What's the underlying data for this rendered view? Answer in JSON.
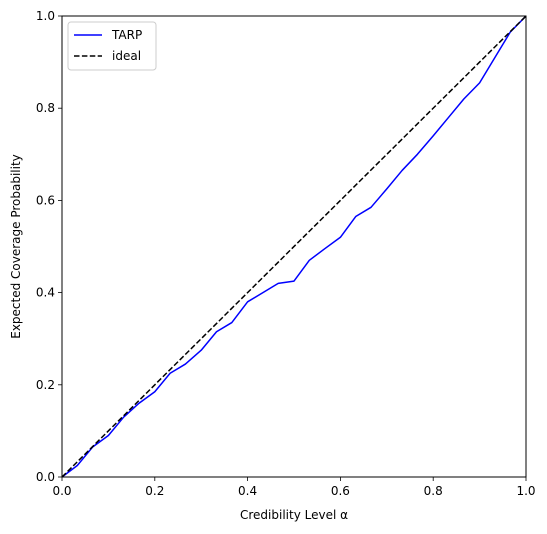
{
  "chart_data": {
    "type": "line",
    "xlabel": "Credibility Level α",
    "ylabel": "Expected Coverage Probability",
    "xlim": [
      0,
      1
    ],
    "ylim": [
      0,
      1
    ],
    "xticks": [
      0.0,
      0.2,
      0.4,
      0.6,
      0.8,
      1.0
    ],
    "yticks": [
      0.0,
      0.2,
      0.4,
      0.6,
      0.8,
      1.0
    ],
    "xtick_labels": [
      "0.0",
      "0.2",
      "0.4",
      "0.6",
      "0.8",
      "1.0"
    ],
    "ytick_labels": [
      "0.0",
      "0.2",
      "0.4",
      "0.6",
      "0.8",
      "1.0"
    ],
    "grid": false,
    "legend_position": "top-left",
    "series": [
      {
        "name": "TARP",
        "color": "#0000ff",
        "style": "solid",
        "x": [
          0.0,
          0.033,
          0.066,
          0.1,
          0.133,
          0.166,
          0.2,
          0.233,
          0.266,
          0.3,
          0.333,
          0.366,
          0.4,
          0.433,
          0.466,
          0.5,
          0.533,
          0.566,
          0.6,
          0.633,
          0.666,
          0.7,
          0.733,
          0.766,
          0.8,
          0.833,
          0.866,
          0.9,
          0.933,
          0.966,
          1.0
        ],
        "y": [
          0.0,
          0.025,
          0.065,
          0.09,
          0.13,
          0.16,
          0.185,
          0.225,
          0.245,
          0.275,
          0.315,
          0.335,
          0.38,
          0.4,
          0.42,
          0.425,
          0.47,
          0.495,
          0.52,
          0.565,
          0.585,
          0.625,
          0.665,
          0.7,
          0.74,
          0.78,
          0.82,
          0.855,
          0.91,
          0.965,
          1.0
        ]
      },
      {
        "name": "ideal",
        "color": "#000000",
        "style": "dashed",
        "x": [
          0.0,
          1.0
        ],
        "y": [
          0.0,
          1.0
        ]
      }
    ]
  }
}
